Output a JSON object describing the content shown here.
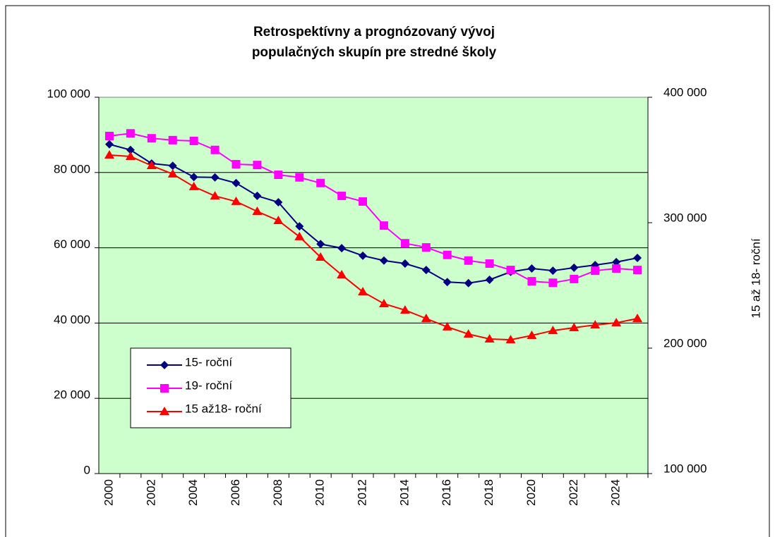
{
  "chart_data": {
    "type": "line",
    "title": [
      "Retrospektívny a prognózovaný vývoj",
      "populačných skupín pre stredné školy"
    ],
    "y2label": "15 až 18- roční",
    "categories": [
      "2000",
      null,
      "2002",
      null,
      "2004",
      null,
      "2006",
      null,
      "2008",
      null,
      "2010",
      null,
      "2012",
      null,
      "2014",
      null,
      "2016",
      null,
      "2018",
      null,
      "2020",
      null,
      "2022",
      null,
      "2024",
      null
    ],
    "ylim": [
      0,
      100000
    ],
    "yticks": [
      0,
      {
        "value": 20000,
        "label": "20 000"
      },
      {
        "value": 40000,
        "label": "40 000"
      },
      {
        "value": 60000,
        "label": "60 000"
      },
      {
        "value": 80000,
        "label": "80 000"
      },
      {
        "value": 100000,
        "label": "100 000"
      }
    ],
    "y2lim": [
      100000,
      400000
    ],
    "y2ticks": [
      {
        "value": 100000,
        "label": "100 000"
      },
      {
        "value": 200000,
        "label": "200 000"
      },
      {
        "value": 300000,
        "label": "300 000"
      },
      {
        "value": 400000,
        "label": "400 000"
      }
    ],
    "grid": true,
    "background": "#ccffcc",
    "series": [
      {
        "name": "15-  roční",
        "color": "#000080",
        "marker": "diamond",
        "values": [
          87500,
          86000,
          82400,
          81800,
          78800,
          78700,
          77200,
          73800,
          72100,
          65700,
          61000,
          59900,
          57900,
          56600,
          55800,
          54100,
          50900,
          50600,
          51500,
          53600,
          54500,
          53900,
          54700,
          55400,
          56200,
          57300
        ]
      },
      {
        "name": "19-  roční",
        "color": "#ff00ff",
        "marker": "square",
        "values": [
          89700,
          90400,
          89100,
          88600,
          88400,
          86000,
          82200,
          82000,
          79400,
          78700,
          77200,
          73800,
          72300,
          65900,
          61200,
          60100,
          58100,
          56600,
          55800,
          54100,
          51100,
          50700,
          51700,
          53900,
          54500,
          54100
        ]
      },
      {
        "name": "15  až18- roční",
        "color": "#ff0000",
        "marker": "triangle",
        "axis": "y2",
        "values": [
          353900,
          352800,
          345500,
          338800,
          328700,
          321300,
          316900,
          309000,
          301700,
          288800,
          272500,
          258400,
          244900,
          235400,
          230300,
          223600,
          216900,
          211200,
          207300,
          206700,
          210100,
          214000,
          216300,
          218500,
          220200,
          223600
        ]
      }
    ]
  }
}
